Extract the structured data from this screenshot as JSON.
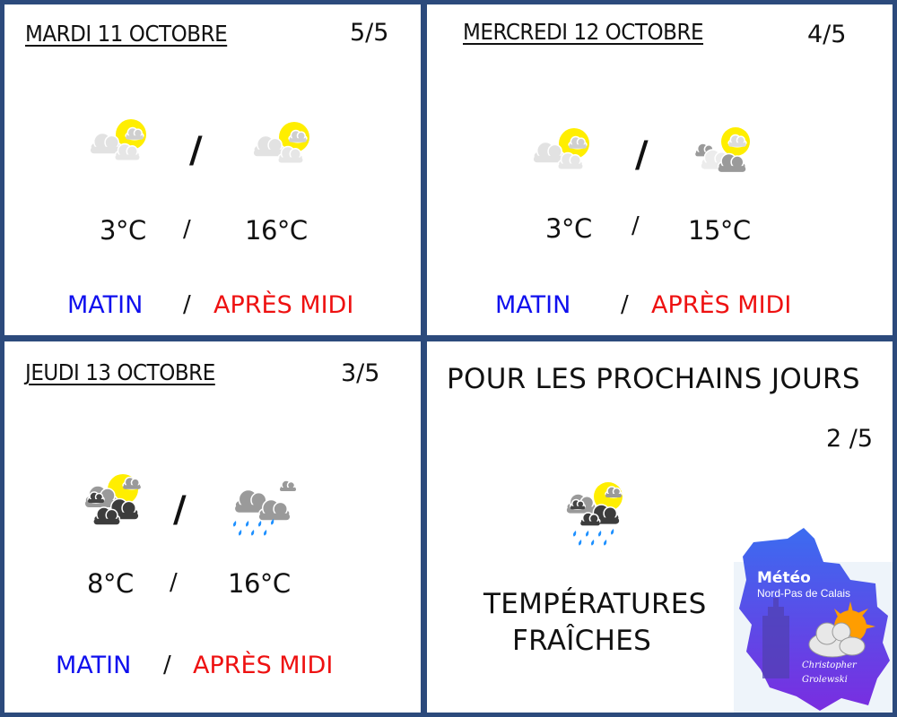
{
  "days": [
    {
      "title": "MARDI 11 OCTOBRE",
      "score": "5/5",
      "morning_icon": "sun-cloud-light",
      "afternoon_icon": "sun-cloud-light",
      "morning_temp": "3°C",
      "afternoon_temp": "16°C",
      "morning_label": "MATIN",
      "afternoon_label": "APRÈS MIDI",
      "separator": "/"
    },
    {
      "title": "MERCREDI 12 OCTOBRE",
      "score": "4/5",
      "morning_icon": "sun-cloud-light",
      "afternoon_icon": "sun-cloud-grey",
      "morning_temp": "3°C",
      "afternoon_temp": "15°C",
      "morning_label": "MATIN",
      "afternoon_label": "APRÈS MIDI",
      "separator": "/"
    },
    {
      "title": "JEUDI 13 OCTOBRE",
      "score": "3/5",
      "morning_icon": "sun-cloud-dark",
      "afternoon_icon": "rain-cloud",
      "morning_temp": "8°C",
      "afternoon_temp": "16°C",
      "morning_label": "MATIN",
      "afternoon_label": "APRÈS MIDI",
      "separator": "/"
    }
  ],
  "outlook": {
    "title": "POUR LES PROCHAINS JOURS",
    "score": "2 /5",
    "icon": "sun-cloud-rain-dark",
    "line1": "TEMPÉRATURES",
    "line2": "FRAÎCHES"
  },
  "logo": {
    "line1": "Météo",
    "line2": "Nord-Pas de Calais",
    "author1": "Christopher",
    "author2": "Grolewski"
  },
  "colors": {
    "frame": "#2c4a7c",
    "morning": "#1010ee",
    "afternoon": "#ee1111",
    "sun": "#ffee00",
    "rain": "#1e90ff"
  }
}
